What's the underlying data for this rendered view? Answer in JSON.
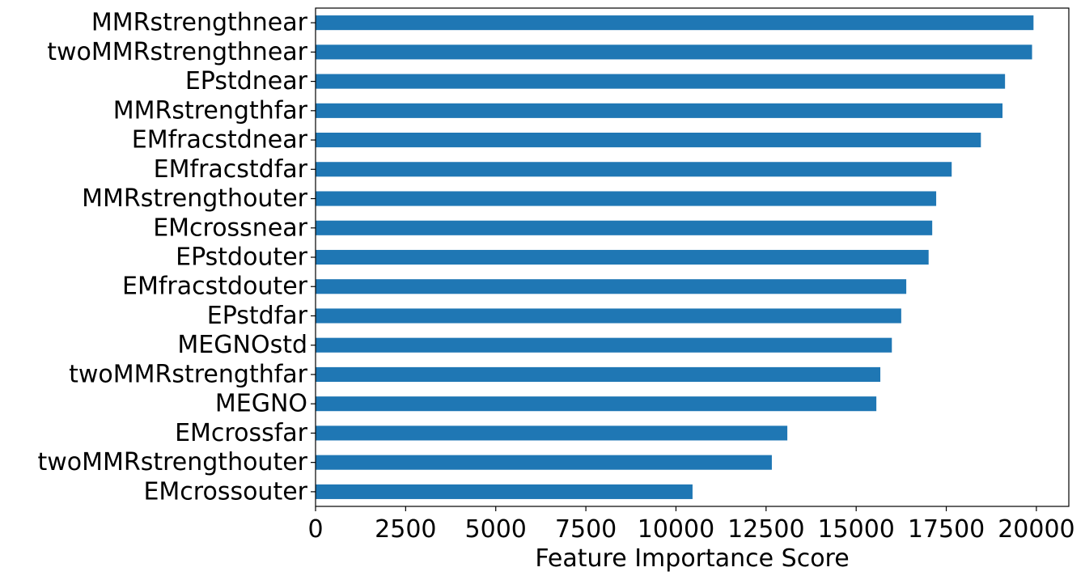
{
  "chart_data": {
    "type": "bar",
    "orientation": "horizontal",
    "title": "",
    "xlabel": "Feature Importance Score",
    "ylabel": "",
    "categories": [
      "MMRstrengthnear",
      "twoMMRstrengthnear",
      "EPstdnear",
      "MMRstrengthfar",
      "EMfracstdnear",
      "EMfracstdfar",
      "MMRstrengthouter",
      "EMcrossnear",
      "EPstdouter",
      "EMfracstdouter",
      "EPstdfar",
      "MEGNOstd",
      "twoMMRstrengthfar",
      "MEGNO",
      "EMcrossfar",
      "twoMMRstrengthouter",
      "EMcrossouter"
    ],
    "values": [
      19920,
      19880,
      19130,
      19060,
      18460,
      17650,
      17220,
      17110,
      17010,
      16390,
      16250,
      15990,
      15670,
      15560,
      13090,
      12660,
      10460
    ],
    "xlim": [
      0,
      20900
    ],
    "xticks": [
      0,
      2500,
      5000,
      7500,
      10000,
      12500,
      15000,
      17500,
      20000
    ],
    "bar_color": "#1f77b4",
    "grid": false,
    "legend": "none"
  }
}
